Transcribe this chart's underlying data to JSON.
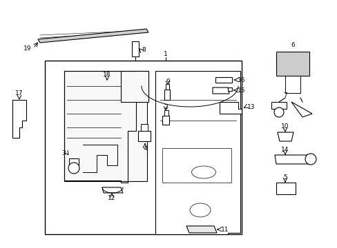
{
  "bg_color": "#ffffff",
  "line_color": "#000000",
  "text_color": "#000000",
  "fig_width": 4.89,
  "fig_height": 3.6,
  "dpi": 100
}
